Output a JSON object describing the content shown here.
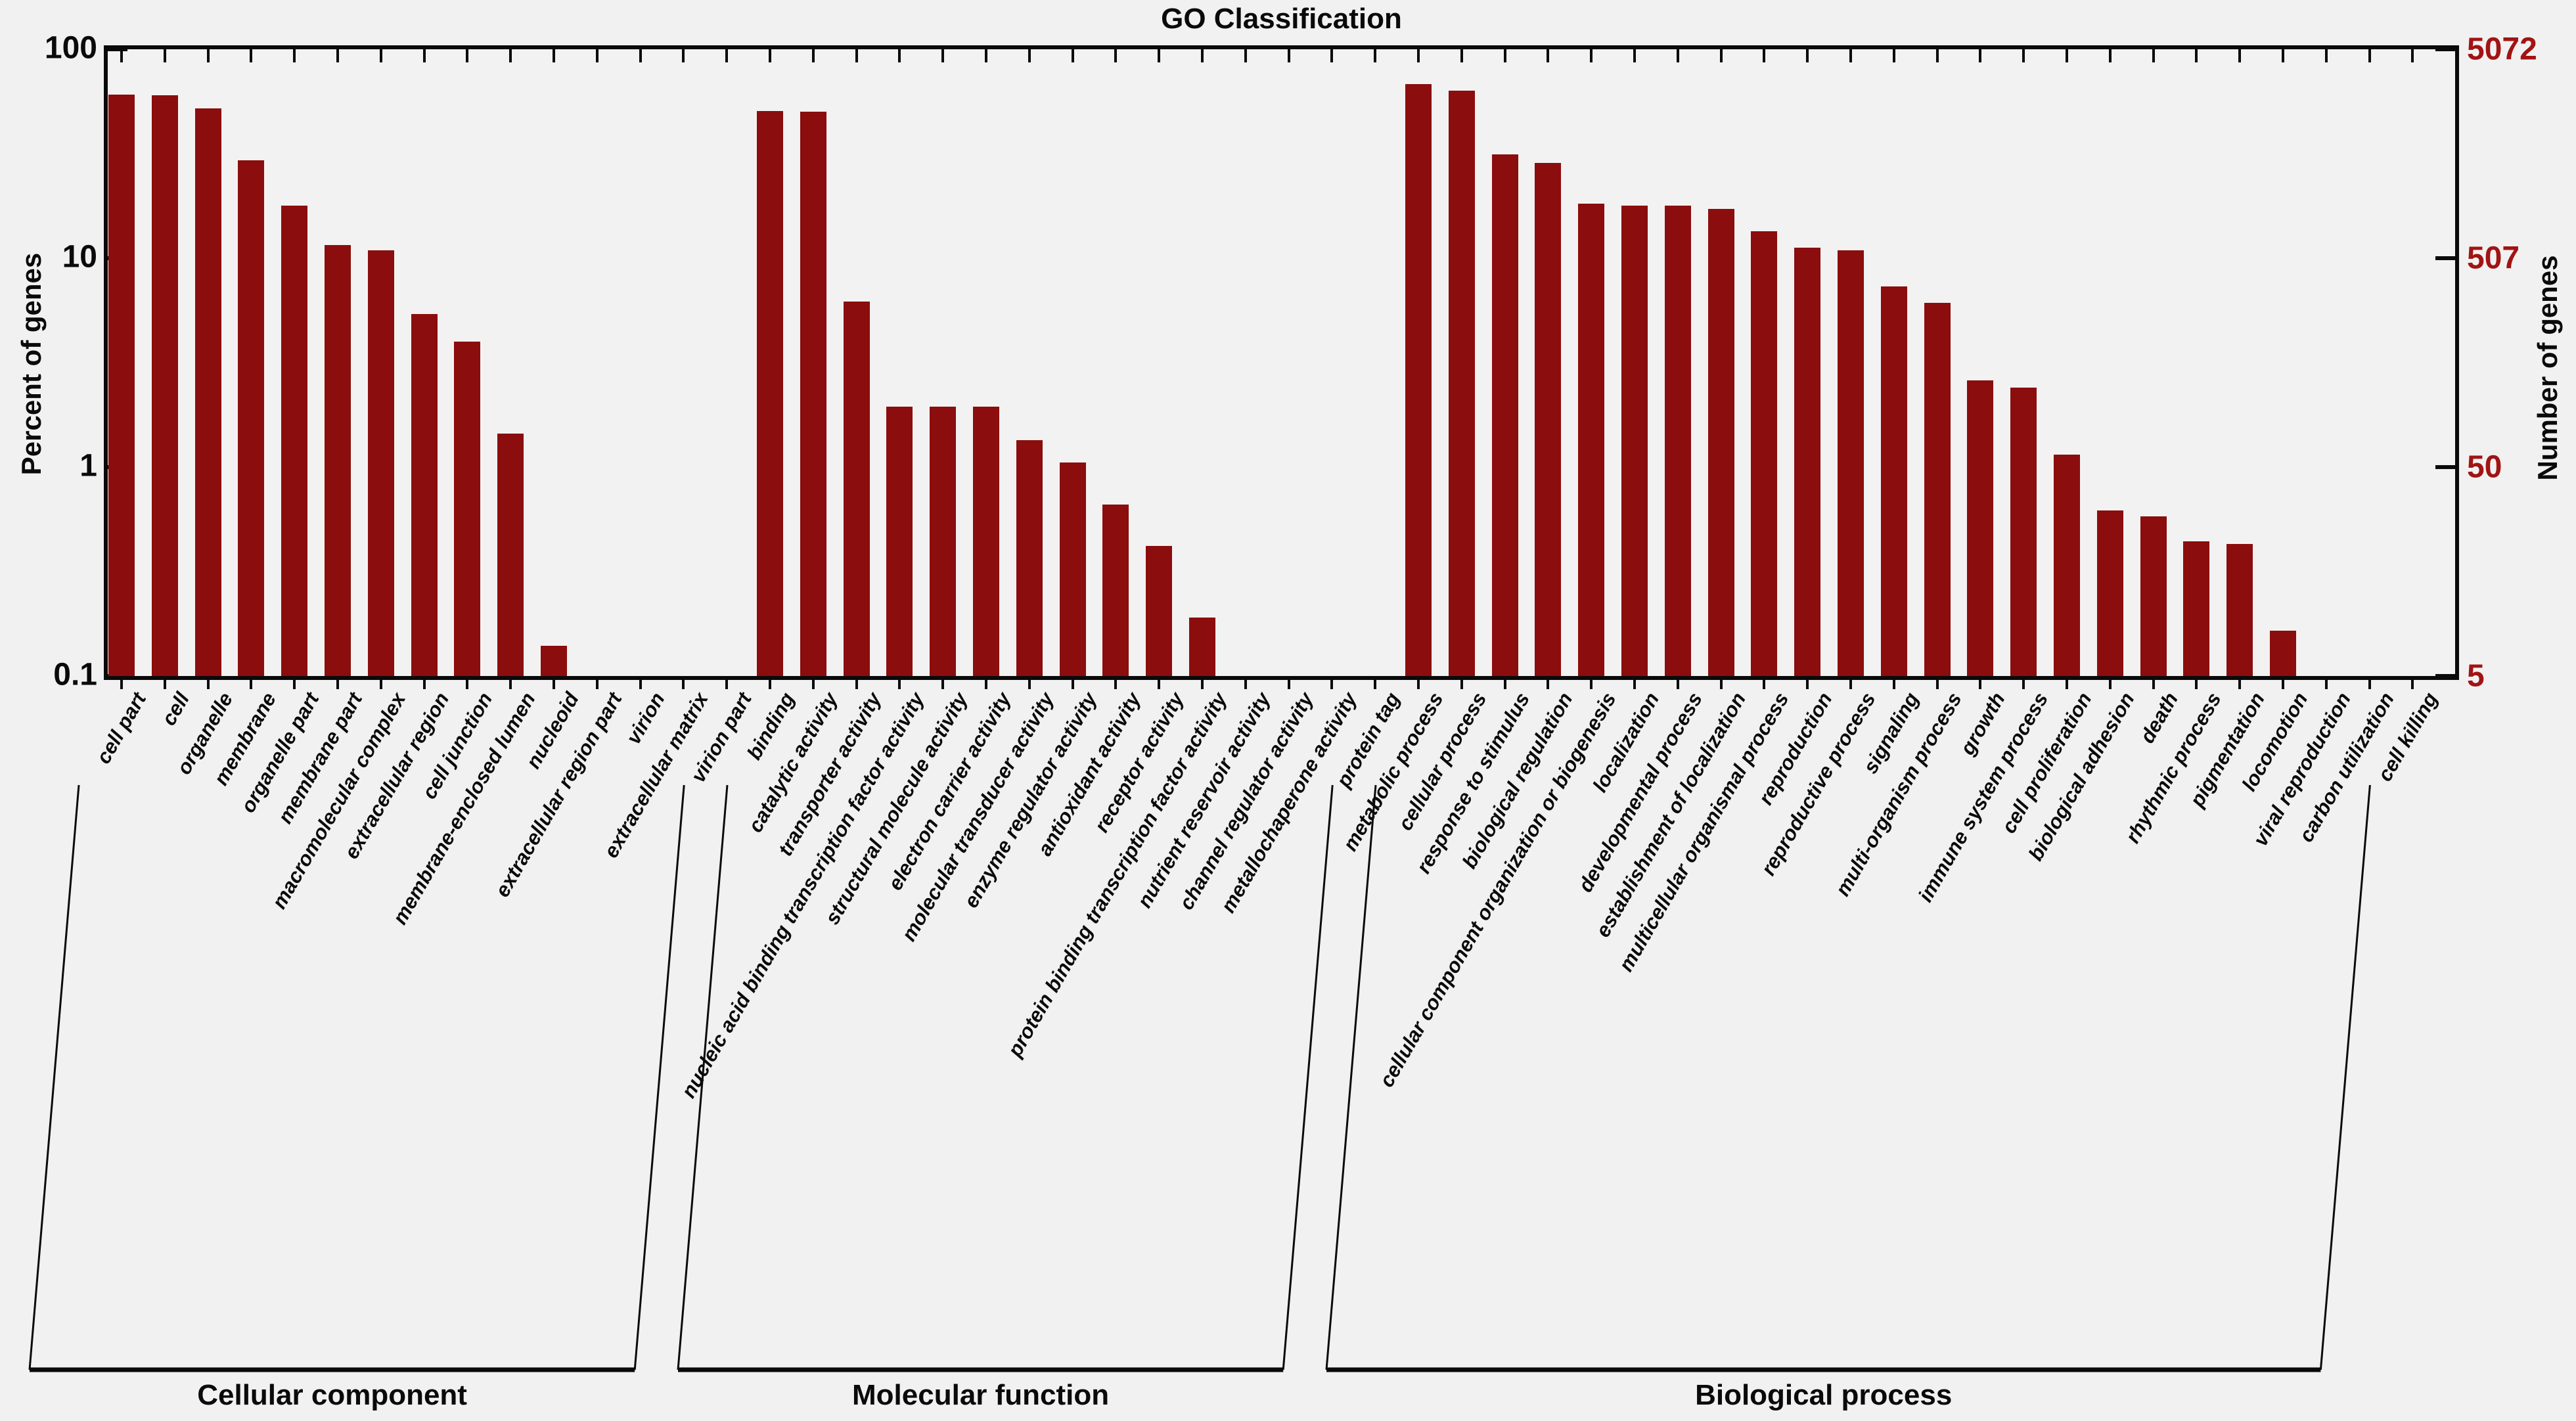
{
  "title": "GO Classification",
  "left_axis": {
    "label": "Percent of genes",
    "tick_labels": [
      "100",
      "10",
      "1",
      "0.1"
    ]
  },
  "right_axis": {
    "label": "Number of genes",
    "tick_labels": [
      "5072",
      "507",
      "50",
      "5"
    ]
  },
  "colors": {
    "bar": "#8B0D0D",
    "right_axis_text": "#A11414",
    "axis": "#0a0a0a",
    "background": "#f2f1f1"
  },
  "chart_data": {
    "type": "bar",
    "title": "GO Classification",
    "ylabel_left": "Percent of genes",
    "ylabel_right": "Number of genes",
    "yscale": "log",
    "ylim_percent": [
      0.1,
      100
    ],
    "left_ticks_percent": [
      100,
      10,
      1,
      0.1
    ],
    "right_ticks_genes": [
      5072,
      507,
      50,
      5
    ],
    "grid": false,
    "legend": "none",
    "groups": [
      {
        "name": "Cellular component",
        "categories": [
          "cell part",
          "cell",
          "organelle",
          "membrane",
          "organelle part",
          "membrane part",
          "macromolecular complex",
          "extracellular region",
          "cell junction",
          "membrane-enclosed lumen",
          "nucleoid",
          "extracellular region part",
          "virion",
          "extracellular matrix",
          "virion part"
        ],
        "values_percent": [
          60.5,
          60.2,
          52,
          29.5,
          17.8,
          11.6,
          10.9,
          5.4,
          4.0,
          1.45,
          0.14,
          0,
          0,
          0,
          0
        ]
      },
      {
        "name": "Molecular function",
        "categories": [
          "binding",
          "catalytic activity",
          "transporter activity",
          "nucleic acid binding transcription factor activity",
          "structural molecule activity",
          "electron carrier activity",
          "molecular transducer activity",
          "enzyme regulator activity",
          "antioxidant activity",
          "receptor activity",
          "protein binding transcription factor activity",
          "nutrient reservoir activity",
          "channel regulator activity",
          "metallochaperone activity",
          "protein tag"
        ],
        "values_percent": [
          50.5,
          50.3,
          6.2,
          1.95,
          1.95,
          1.95,
          1.35,
          1.05,
          0.66,
          0.42,
          0.19,
          0,
          0,
          0,
          0
        ]
      },
      {
        "name": "Biological process",
        "categories": [
          "metabolic process",
          "cellular process",
          "response to stimulus",
          "biological regulation",
          "cellular component organization or biogenesis",
          "localization",
          "developmental process",
          "establishment of localization",
          "multicellular organismal process",
          "reproduction",
          "reproductive process",
          "signaling",
          "multi-organism process",
          "growth",
          "immune system process",
          "cell proliferation",
          "biological adhesion",
          "death",
          "rhythmic process",
          "pigmentation",
          "locomotion",
          "viral reproduction",
          "carbon utilization",
          "cell killing"
        ],
        "values_percent": [
          68,
          63.5,
          31.5,
          28.6,
          18.3,
          17.8,
          17.8,
          17.2,
          13.5,
          11.2,
          10.9,
          7.3,
          6.1,
          2.6,
          2.4,
          1.15,
          0.62,
          0.58,
          0.44,
          0.43,
          0.165,
          0,
          0,
          0
        ]
      }
    ]
  }
}
